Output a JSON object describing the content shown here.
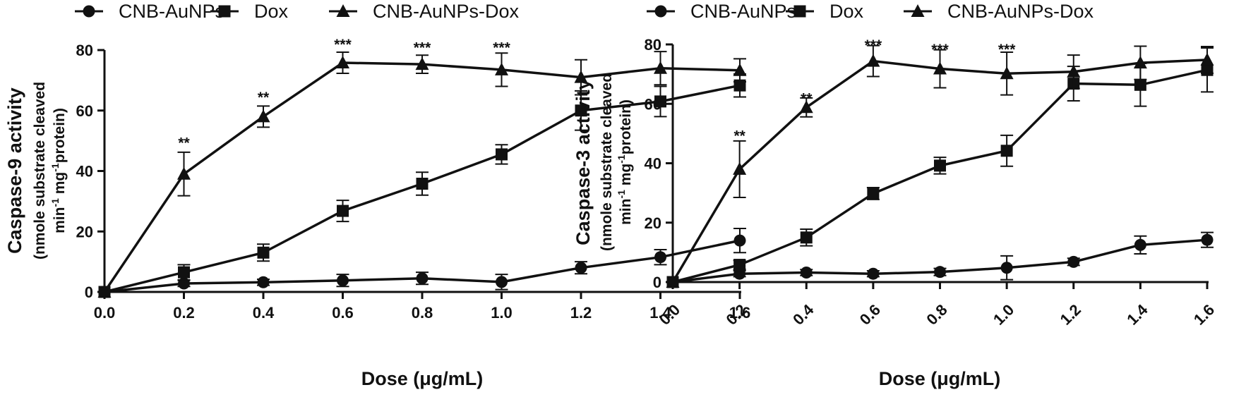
{
  "legend": {
    "items": [
      {
        "label": "CNB-AuNPs",
        "marker": "circle"
      },
      {
        "label": "Dox",
        "marker": "square"
      },
      {
        "label": "CNB-AuNPs-Dox",
        "marker": "triangle"
      }
    ]
  },
  "chart_data": [
    {
      "type": "line",
      "title": "",
      "xlabel": "Dose (μg/mL)",
      "ylabel": "Caspase-9 activity",
      "ylabel_sub_line1": "(nmole substrate cleaved",
      "ylabel_sub_line2_parts": [
        "min",
        "-1",
        " mg",
        "-1",
        "protein)"
      ],
      "x": [
        0.0,
        0.2,
        0.4,
        0.6,
        0.8,
        1.0,
        1.2,
        1.4,
        1.6
      ],
      "x_tick_labels": [
        "0.0",
        "0.2",
        "0.4",
        "0.6",
        "0.8",
        "1.0",
        "1.2",
        "1.4",
        "1.6"
      ],
      "x_tick_rotation": 0,
      "xlim": [
        0,
        1.6
      ],
      "ylim": [
        0,
        80
      ],
      "y_ticks": [
        0,
        20,
        40,
        60,
        80
      ],
      "y_tick_labels": [
        "0",
        "20",
        "40",
        "60",
        "80"
      ],
      "grid": false,
      "legend_position": "top",
      "series": [
        {
          "name": "CNB-AuNPs",
          "marker": "circle",
          "values": [
            0,
            2.8,
            3.2,
            3.8,
            4.5,
            3.3,
            8.0,
            11.5,
            17.0
          ],
          "errors": [
            0,
            1.0,
            1.0,
            2.0,
            2.0,
            2.5,
            2.0,
            2.5,
            4.0
          ]
        },
        {
          "name": "Dox",
          "marker": "square",
          "values": [
            0,
            6.5,
            13.0,
            26.8,
            35.8,
            45.5,
            60.0,
            63.0,
            68.3
          ],
          "errors": [
            0,
            2.5,
            2.8,
            3.5,
            3.8,
            3.2,
            6.5,
            5.0,
            3.8
          ]
        },
        {
          "name": "CNB-AuNPs-Dox",
          "marker": "triangle",
          "values": [
            0,
            39.0,
            58.0,
            75.8,
            75.3,
            73.5,
            71.0,
            74.0,
            73.3
          ],
          "errors": [
            0,
            7.2,
            3.5,
            3.5,
            3.0,
            5.5,
            5.8,
            5.5,
            3.8
          ]
        }
      ],
      "annotations": [
        {
          "x": 0.2,
          "text": "**",
          "y": 50.5
        },
        {
          "x": 0.4,
          "text": "**",
          "y": 65.5
        },
        {
          "x": 0.6,
          "text": "***",
          "y": 83.0
        },
        {
          "x": 0.8,
          "text": "***",
          "y": 82.0
        },
        {
          "x": 1.0,
          "text": "***",
          "y": 82.0
        }
      ]
    },
    {
      "type": "line",
      "title": "",
      "xlabel": "Dose (μg/mL)",
      "ylabel": "Caspase-3 activity",
      "ylabel_sub_line1": "(nmole substrate cleaved",
      "ylabel_sub_line2_parts": [
        "min",
        "-1",
        " mg",
        "-1",
        "protein)"
      ],
      "x": [
        0.0,
        0.2,
        0.4,
        0.6,
        0.8,
        1.0,
        1.2,
        1.4,
        1.6
      ],
      "x_tick_labels": [
        "0.0",
        "0.2",
        "0.4",
        "0.6",
        "0.8",
        "1.0",
        "1.2",
        "1.4",
        "1.6"
      ],
      "x_tick_rotation": -45,
      "xlim": [
        0,
        1.6
      ],
      "ylim": [
        0,
        80
      ],
      "y_ticks": [
        0,
        20,
        40,
        60,
        80
      ],
      "y_tick_labels": [
        "0",
        "20",
        "40",
        "60",
        "80"
      ],
      "grid": false,
      "legend_position": "top",
      "series": [
        {
          "name": "CNB-AuNPs",
          "marker": "circle",
          "values": [
            0,
            2.8,
            3.2,
            2.8,
            3.4,
            4.8,
            6.8,
            12.5,
            14.2
          ],
          "errors": [
            0,
            1.0,
            1.0,
            1.0,
            1.2,
            4.0,
            1.2,
            3.0,
            2.5
          ]
        },
        {
          "name": "Dox",
          "marker": "square",
          "values": [
            0,
            5.8,
            15.0,
            29.8,
            39.2,
            44.2,
            66.8,
            66.4,
            71.4
          ],
          "errors": [
            0,
            1.5,
            2.8,
            2.0,
            2.8,
            5.2,
            5.8,
            7.2,
            7.4
          ]
        },
        {
          "name": "CNB-AuNPs-Dox",
          "marker": "triangle",
          "values": [
            0,
            38.0,
            58.8,
            74.4,
            71.8,
            70.2,
            70.8,
            73.8,
            74.8
          ],
          "errors": [
            0,
            9.5,
            3.2,
            5.2,
            6.4,
            7.2,
            5.6,
            5.6,
            4.5
          ]
        }
      ],
      "annotations": [
        {
          "x": 0.2,
          "text": "**",
          "y": 50.5
        },
        {
          "x": 0.4,
          "text": "**",
          "y": 63.0
        },
        {
          "x": 0.6,
          "text": "***",
          "y": 81.0
        },
        {
          "x": 0.8,
          "text": "***",
          "y": 79.5
        },
        {
          "x": 1.0,
          "text": "***",
          "y": 79.5
        }
      ]
    }
  ]
}
